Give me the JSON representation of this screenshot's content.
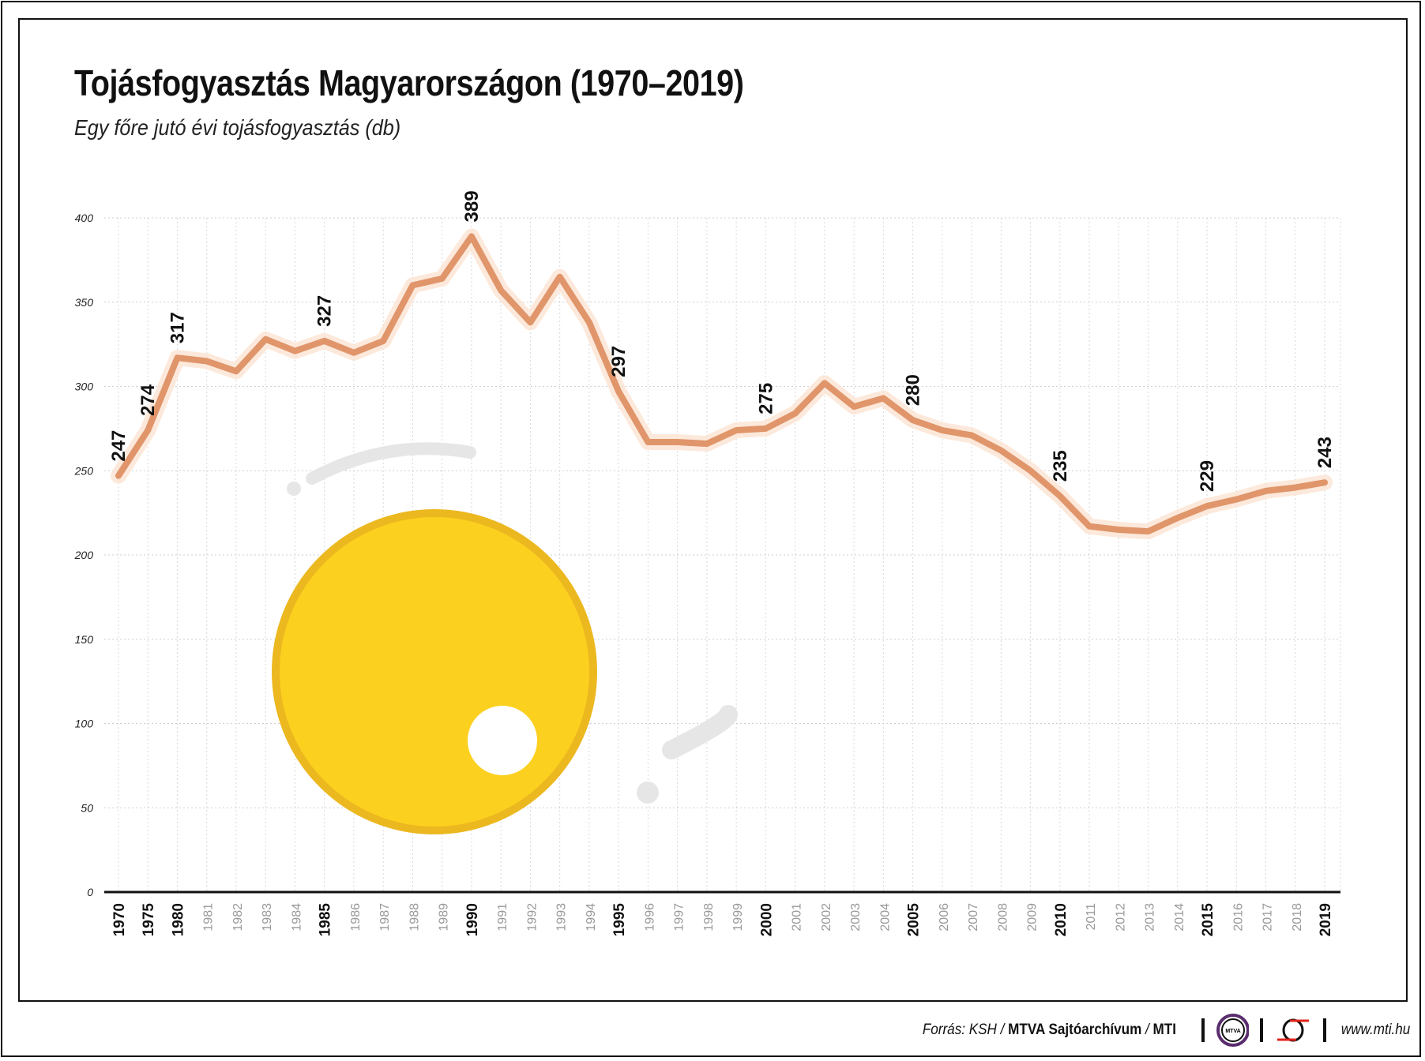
{
  "chart_data": {
    "type": "line",
    "title": "Tojásfogyasztás Magyarországon (1970–2019)",
    "subtitle": "Egy főre jutó évi tojásfogyasztás (db)",
    "xlabel": "",
    "ylabel": "",
    "ylim": [
      0,
      400
    ],
    "yticks": [
      0,
      50,
      100,
      150,
      200,
      250,
      300,
      350,
      400
    ],
    "grid": true,
    "legend": "none",
    "line_color": "#e0956a",
    "x": [
      "1970",
      "1975",
      "1980",
      "1981",
      "1982",
      "1983",
      "1984",
      "1985",
      "1986",
      "1987",
      "1988",
      "1989",
      "1990",
      "1991",
      "1992",
      "1993",
      "1994",
      "1995",
      "1996",
      "1997",
      "1998",
      "1999",
      "2000",
      "2001",
      "2002",
      "2003",
      "2004",
      "2005",
      "2006",
      "2007",
      "2008",
      "2009",
      "2010",
      "2011",
      "2012",
      "2013",
      "2014",
      "2015",
      "2016",
      "2017",
      "2018",
      "2019"
    ],
    "bold_ticks": [
      "1970",
      "1975",
      "1980",
      "1985",
      "1990",
      "1995",
      "2000",
      "2005",
      "2010",
      "2015",
      "2019"
    ],
    "values": [
      247,
      274,
      317,
      315,
      309,
      328,
      321,
      327,
      320,
      327,
      360,
      364,
      389,
      357,
      338,
      365,
      338,
      297,
      267,
      267,
      266,
      274,
      275,
      284,
      302,
      288,
      293,
      280,
      274,
      271,
      262,
      250,
      235,
      217,
      215,
      214,
      222,
      229,
      233,
      238,
      240,
      243
    ],
    "data_labels": {
      "1970": "247",
      "1975": "274",
      "1980": "317",
      "1985": "327",
      "1990": "389",
      "1995": "297",
      "2000": "275",
      "2005": "280",
      "2010": "235",
      "2015": "229",
      "2019": "243"
    }
  },
  "footer": {
    "source_prefix": "Forrás: KSH /",
    "source_bold": "MTVA Sajtóarchívum",
    "source_sep": "/",
    "source_mti": "MTI",
    "logo_mtva": "MTVA",
    "url": "www.mti.hu"
  },
  "colors": {
    "egg_yolk": "#fcd01f",
    "egg_rim": "#ecb81f",
    "line": "#e0956a",
    "deco": "#e6e6e6"
  }
}
